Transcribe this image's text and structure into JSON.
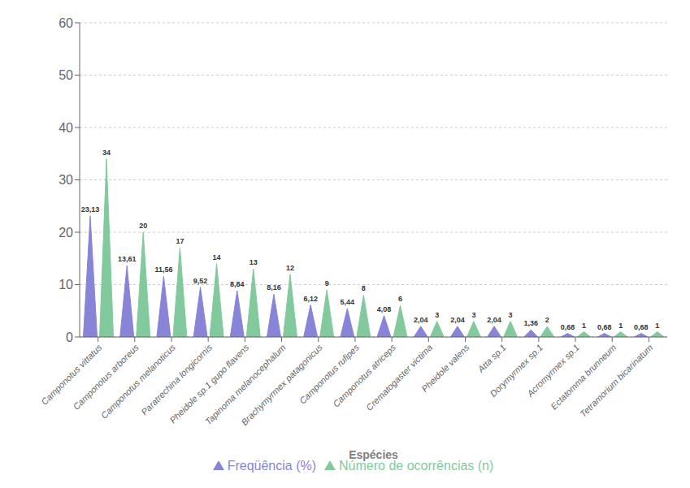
{
  "chart_data": {
    "type": "bar",
    "marker": "triangle",
    "xlabel": "Espécies",
    "categories": [
      "Camponotus vittatus",
      "Camponotus arboreus",
      "Camponotus melanoticus",
      "Paratrechina longicornis",
      "Pheidole sp.1 gupo flavens",
      "Tapinoma melanocephalum",
      "Brachymyrmex patagonicus",
      "Camponotus rufipes",
      "Camponotus atriceps",
      "Crematogaster victima",
      "Pheidole valens",
      "Atta sp.1",
      "Dorymyrmex sp.1",
      "Acromyrmex sp.1",
      "Ectatomma brunneum",
      "Tetramorium bicarinatum"
    ],
    "series": [
      {
        "name": "Freqüência (%)",
        "color": "#8884d8",
        "values": [
          23.13,
          13.61,
          11.56,
          9.52,
          8.84,
          8.16,
          6.12,
          5.44,
          4.08,
          2.04,
          2.04,
          2.04,
          1.36,
          0.68,
          0.68,
          0.68
        ],
        "value_labels": [
          "23,13",
          "13,61",
          "11,56",
          "9,52",
          "8,84",
          "8,16",
          "6,12",
          "5,44",
          "4,08",
          "2,04",
          "2,04",
          "2,04",
          "1,36",
          "0,68",
          "0,68",
          "0,68"
        ]
      },
      {
        "name": "Número de ocorrências (n)",
        "color": "#82ca9d",
        "values": [
          34,
          20,
          17,
          14,
          13,
          12,
          9,
          8,
          6,
          3,
          3,
          3,
          2,
          1,
          1,
          1
        ]
      }
    ],
    "ylim": [
      0,
      60
    ],
    "yticks": [
      0,
      10,
      20,
      30,
      40,
      50,
      60
    ],
    "grid": true,
    "legend": "bottom",
    "data_labels": true
  }
}
